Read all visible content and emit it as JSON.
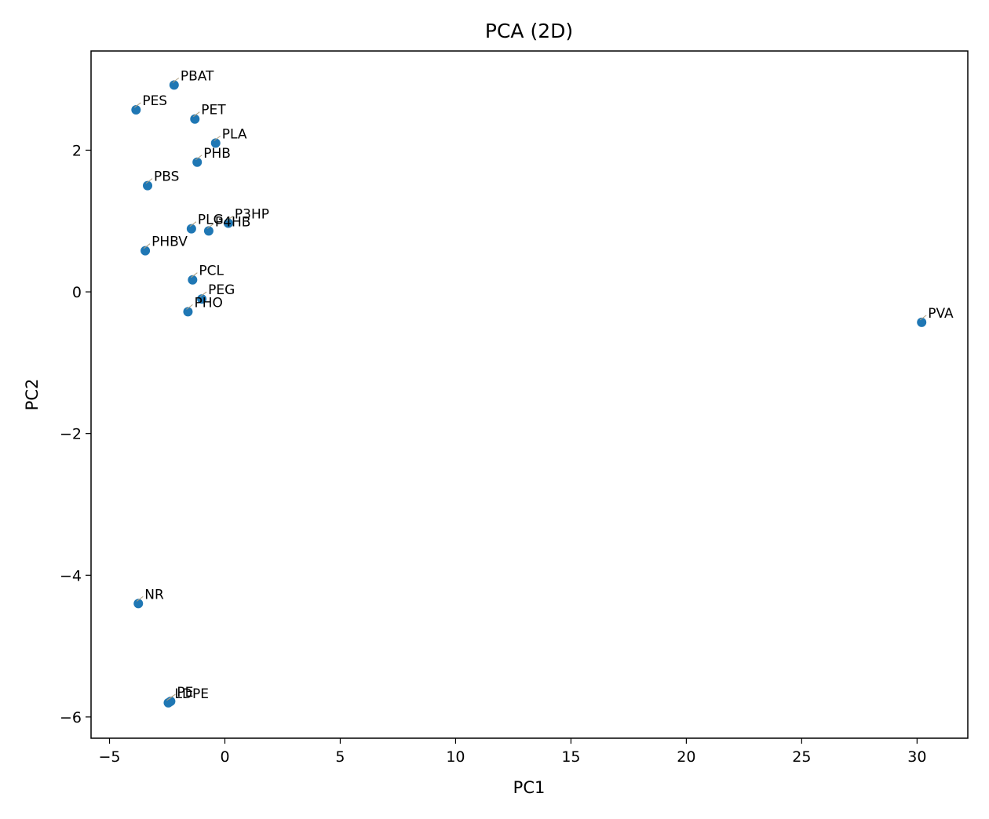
{
  "chart_data": {
    "type": "scatter",
    "title": "PCA (2D)",
    "xlabel": "PC1",
    "ylabel": "PC2",
    "xlim": [
      -5.8,
      32.2
    ],
    "ylim": [
      -6.3,
      3.4
    ],
    "xticks": [
      -5,
      0,
      5,
      10,
      15,
      20,
      25,
      30
    ],
    "yticks": [
      -6,
      -4,
      -2,
      0,
      2
    ],
    "grid": false,
    "marker_color": "#1f77b4",
    "points": [
      {
        "label": "PBAT",
        "x": -2.2,
        "y": 2.92
      },
      {
        "label": "PES",
        "x": -3.85,
        "y": 2.57
      },
      {
        "label": "PET",
        "x": -1.3,
        "y": 2.44
      },
      {
        "label": "PLA",
        "x": -0.4,
        "y": 2.1
      },
      {
        "label": "PHB",
        "x": -1.2,
        "y": 1.83
      },
      {
        "label": "PBS",
        "x": -3.35,
        "y": 1.5
      },
      {
        "label": "P3HP",
        "x": 0.15,
        "y": 0.97
      },
      {
        "label": "P4HB",
        "x": -0.7,
        "y": 0.86
      },
      {
        "label": "PLG",
        "x": -1.45,
        "y": 0.89
      },
      {
        "label": "PHBV",
        "x": -3.45,
        "y": 0.58
      },
      {
        "label": "PCL",
        "x": -1.4,
        "y": 0.17
      },
      {
        "label": "PEG",
        "x": -1.0,
        "y": -0.1
      },
      {
        "label": "PHO",
        "x": -1.6,
        "y": -0.28
      },
      {
        "label": "PVA",
        "x": 30.2,
        "y": -0.43
      },
      {
        "label": "NR",
        "x": -3.75,
        "y": -4.4
      },
      {
        "label": "PE",
        "x": -2.35,
        "y": -5.78
      },
      {
        "label": "LDPE",
        "x": -2.45,
        "y": -5.8
      }
    ]
  }
}
